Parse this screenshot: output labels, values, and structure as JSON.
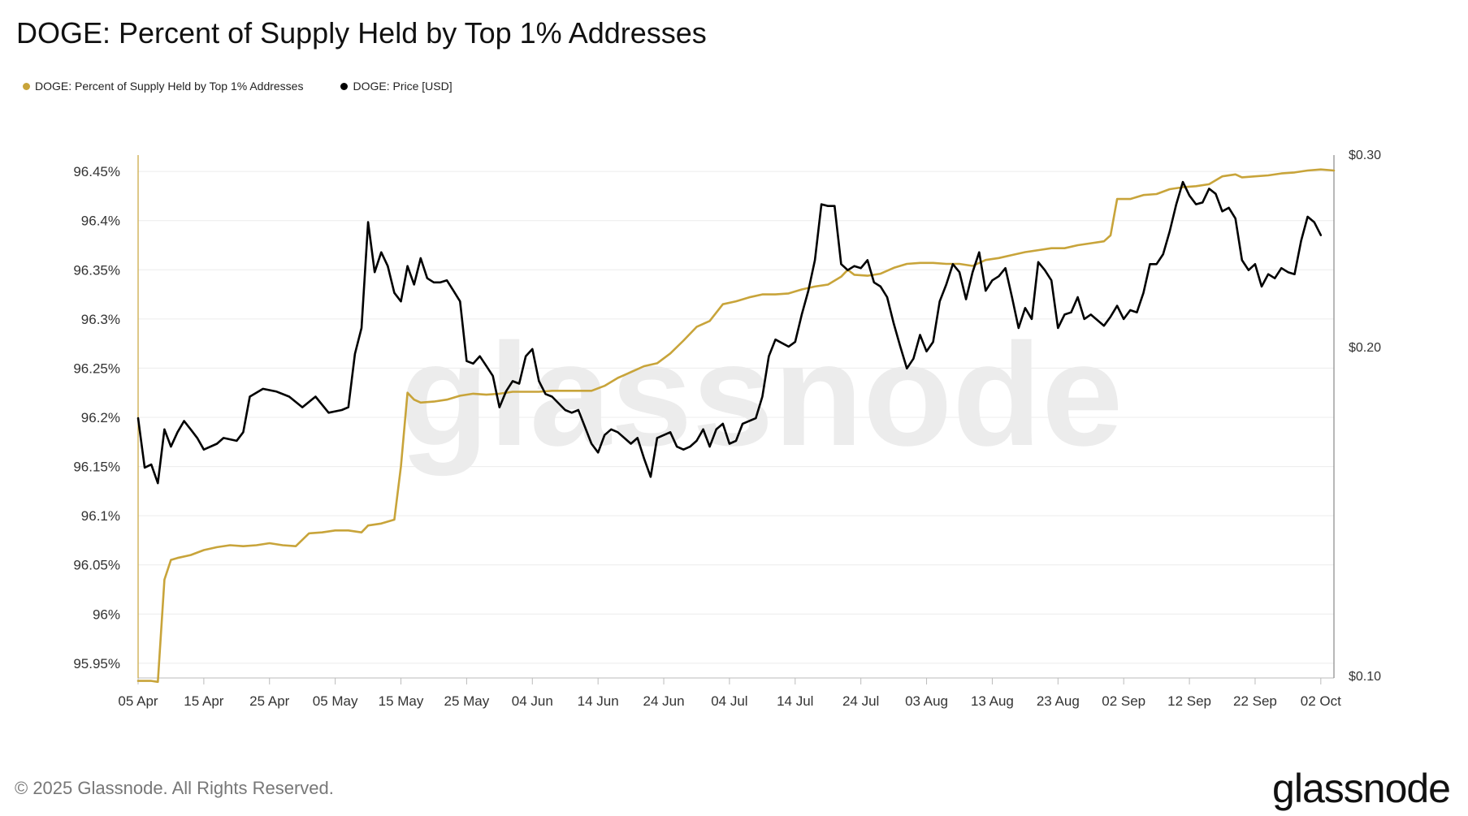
{
  "title": "DOGE: Percent of Supply Held by Top 1% Addresses",
  "legend": [
    {
      "label": "DOGE: Percent of Supply Held by Top 1% Addresses",
      "color": "#c8a43a"
    },
    {
      "label": "DOGE: Price [USD]",
      "color": "#000000"
    }
  ],
  "watermark": "glassnode",
  "footer": "© 2025 Glassnode. All Rights Reserved.",
  "brand": "glassnode",
  "chart_data": {
    "type": "line",
    "title": "DOGE: Percent of Supply Held by Top 1% Addresses",
    "x_ticks": [
      "05 Apr",
      "15 Apr",
      "25 Apr",
      "05 May",
      "15 May",
      "25 May",
      "04 Jun",
      "14 Jun",
      "24 Jun",
      "04 Jul",
      "14 Jul",
      "24 Jul",
      "03 Aug",
      "13 Aug",
      "23 Aug",
      "02 Sep",
      "12 Sep",
      "22 Sep",
      "02 Oct"
    ],
    "x_start": "2025-04-05",
    "x_end": "2025-10-04",
    "y_left_ticks": [
      "96.45%",
      "96.4%",
      "96.35%",
      "96.3%",
      "96.25%",
      "96.2%",
      "96.15%",
      "96.1%",
      "96.05%",
      "96%",
      "95.95%"
    ],
    "y_left_range": [
      95.935,
      96.465
    ],
    "y_right_ticks": [
      "$0.30",
      "$0.20",
      "$0.10"
    ],
    "y_right_range": [
      0.1,
      0.3
    ],
    "y_right_scale": "log",
    "grid": "horizontal",
    "legend_position": "top-left",
    "series": [
      {
        "name": "DOGE: Percent of Supply Held by Top 1% Addresses",
        "color": "#c8a43a",
        "axis": "left",
        "points": [
          [
            "2025-04-05",
            95.932
          ],
          [
            "2025-04-07",
            95.932
          ],
          [
            "2025-04-08",
            95.931
          ],
          [
            "2025-04-09",
            96.035
          ],
          [
            "2025-04-10",
            96.055
          ],
          [
            "2025-04-11",
            96.057
          ],
          [
            "2025-04-13",
            96.06
          ],
          [
            "2025-04-15",
            96.065
          ],
          [
            "2025-04-17",
            96.068
          ],
          [
            "2025-04-19",
            96.07
          ],
          [
            "2025-04-21",
            96.069
          ],
          [
            "2025-04-23",
            96.07
          ],
          [
            "2025-04-25",
            96.072
          ],
          [
            "2025-04-27",
            96.07
          ],
          [
            "2025-04-29",
            96.069
          ],
          [
            "2025-05-01",
            96.082
          ],
          [
            "2025-05-03",
            96.083
          ],
          [
            "2025-05-05",
            96.085
          ],
          [
            "2025-05-07",
            96.085
          ],
          [
            "2025-05-09",
            96.083
          ],
          [
            "2025-05-10",
            96.09
          ],
          [
            "2025-05-12",
            96.092
          ],
          [
            "2025-05-14",
            96.096
          ],
          [
            "2025-05-15",
            96.15
          ],
          [
            "2025-05-16",
            96.225
          ],
          [
            "2025-05-17",
            96.218
          ],
          [
            "2025-05-18",
            96.215
          ],
          [
            "2025-05-20",
            96.216
          ],
          [
            "2025-05-22",
            96.218
          ],
          [
            "2025-05-24",
            96.222
          ],
          [
            "2025-05-26",
            96.224
          ],
          [
            "2025-05-28",
            96.223
          ],
          [
            "2025-05-30",
            96.224
          ],
          [
            "2025-06-01",
            96.226
          ],
          [
            "2025-06-03",
            96.226
          ],
          [
            "2025-06-05",
            96.226
          ],
          [
            "2025-06-07",
            96.227
          ],
          [
            "2025-06-09",
            96.227
          ],
          [
            "2025-06-11",
            96.227
          ],
          [
            "2025-06-13",
            96.227
          ],
          [
            "2025-06-15",
            96.232
          ],
          [
            "2025-06-17",
            96.24
          ],
          [
            "2025-06-19",
            96.246
          ],
          [
            "2025-06-21",
            96.252
          ],
          [
            "2025-06-23",
            96.255
          ],
          [
            "2025-06-25",
            96.265
          ],
          [
            "2025-06-27",
            96.278
          ],
          [
            "2025-06-29",
            96.292
          ],
          [
            "2025-07-01",
            96.298
          ],
          [
            "2025-07-03",
            96.315
          ],
          [
            "2025-07-05",
            96.318
          ],
          [
            "2025-07-07",
            96.322
          ],
          [
            "2025-07-09",
            96.325
          ],
          [
            "2025-07-11",
            96.325
          ],
          [
            "2025-07-13",
            96.326
          ],
          [
            "2025-07-15",
            96.33
          ],
          [
            "2025-07-17",
            96.333
          ],
          [
            "2025-07-19",
            96.335
          ],
          [
            "2025-07-21",
            96.343
          ],
          [
            "2025-07-22",
            96.35
          ],
          [
            "2025-07-23",
            96.345
          ],
          [
            "2025-07-25",
            96.344
          ],
          [
            "2025-07-27",
            96.346
          ],
          [
            "2025-07-29",
            96.352
          ],
          [
            "2025-07-31",
            96.356
          ],
          [
            "2025-08-02",
            96.357
          ],
          [
            "2025-08-04",
            96.357
          ],
          [
            "2025-08-06",
            96.356
          ],
          [
            "2025-08-08",
            96.356
          ],
          [
            "2025-08-10",
            96.354
          ],
          [
            "2025-08-12",
            96.36
          ],
          [
            "2025-08-14",
            96.362
          ],
          [
            "2025-08-16",
            96.365
          ],
          [
            "2025-08-18",
            96.368
          ],
          [
            "2025-08-20",
            96.37
          ],
          [
            "2025-08-22",
            96.372
          ],
          [
            "2025-08-24",
            96.372
          ],
          [
            "2025-08-26",
            96.375
          ],
          [
            "2025-08-28",
            96.377
          ],
          [
            "2025-08-30",
            96.379
          ],
          [
            "2025-08-31",
            96.385
          ],
          [
            "2025-09-01",
            96.422
          ],
          [
            "2025-09-03",
            96.422
          ],
          [
            "2025-09-05",
            96.426
          ],
          [
            "2025-09-07",
            96.427
          ],
          [
            "2025-09-09",
            96.432
          ],
          [
            "2025-09-11",
            96.434
          ],
          [
            "2025-09-13",
            96.435
          ],
          [
            "2025-09-15",
            96.437
          ],
          [
            "2025-09-17",
            96.445
          ],
          [
            "2025-09-19",
            96.447
          ],
          [
            "2025-09-20",
            96.444
          ],
          [
            "2025-09-22",
            96.445
          ],
          [
            "2025-09-24",
            96.446
          ],
          [
            "2025-09-26",
            96.448
          ],
          [
            "2025-09-28",
            96.449
          ],
          [
            "2025-09-30",
            96.451
          ],
          [
            "2025-10-02",
            96.452
          ],
          [
            "2025-10-04",
            96.451
          ]
        ]
      },
      {
        "name": "DOGE: Price [USD]",
        "color": "#000000",
        "axis": "right",
        "points": [
          [
            "2025-04-05",
            0.172
          ],
          [
            "2025-04-06",
            0.155
          ],
          [
            "2025-04-07",
            0.156
          ],
          [
            "2025-04-08",
            0.15
          ],
          [
            "2025-04-09",
            0.168
          ],
          [
            "2025-04-10",
            0.162
          ],
          [
            "2025-04-11",
            0.167
          ],
          [
            "2025-04-12",
            0.171
          ],
          [
            "2025-04-13",
            0.168
          ],
          [
            "2025-04-14",
            0.165
          ],
          [
            "2025-04-15",
            0.161
          ],
          [
            "2025-04-17",
            0.163
          ],
          [
            "2025-04-18",
            0.165
          ],
          [
            "2025-04-20",
            0.164
          ],
          [
            "2025-04-21",
            0.167
          ],
          [
            "2025-04-22",
            0.18
          ],
          [
            "2025-04-24",
            0.183
          ],
          [
            "2025-04-26",
            0.182
          ],
          [
            "2025-04-28",
            0.18
          ],
          [
            "2025-04-30",
            0.176
          ],
          [
            "2025-05-02",
            0.18
          ],
          [
            "2025-05-04",
            0.174
          ],
          [
            "2025-05-06",
            0.175
          ],
          [
            "2025-05-07",
            0.176
          ],
          [
            "2025-05-08",
            0.197
          ],
          [
            "2025-05-09",
            0.208
          ],
          [
            "2025-05-10",
            0.26
          ],
          [
            "2025-05-11",
            0.234
          ],
          [
            "2025-05-12",
            0.244
          ],
          [
            "2025-05-13",
            0.237
          ],
          [
            "2025-05-14",
            0.224
          ],
          [
            "2025-05-15",
            0.22
          ],
          [
            "2025-05-16",
            0.237
          ],
          [
            "2025-05-17",
            0.228
          ],
          [
            "2025-05-18",
            0.241
          ],
          [
            "2025-05-19",
            0.231
          ],
          [
            "2025-05-20",
            0.229
          ],
          [
            "2025-05-21",
            0.229
          ],
          [
            "2025-05-22",
            0.23
          ],
          [
            "2025-05-23",
            0.225
          ],
          [
            "2025-05-24",
            0.22
          ],
          [
            "2025-05-25",
            0.194
          ],
          [
            "2025-05-26",
            0.193
          ],
          [
            "2025-05-27",
            0.196
          ],
          [
            "2025-05-28",
            0.192
          ],
          [
            "2025-05-29",
            0.188
          ],
          [
            "2025-05-30",
            0.176
          ],
          [
            "2025-05-31",
            0.182
          ],
          [
            "2025-06-01",
            0.186
          ],
          [
            "2025-06-02",
            0.185
          ],
          [
            "2025-06-03",
            0.196
          ],
          [
            "2025-06-04",
            0.199
          ],
          [
            "2025-06-05",
            0.186
          ],
          [
            "2025-06-06",
            0.181
          ],
          [
            "2025-06-07",
            0.18
          ],
          [
            "2025-06-09",
            0.175
          ],
          [
            "2025-06-10",
            0.174
          ],
          [
            "2025-06-11",
            0.175
          ],
          [
            "2025-06-13",
            0.163
          ],
          [
            "2025-06-14",
            0.16
          ],
          [
            "2025-06-15",
            0.166
          ],
          [
            "2025-06-16",
            0.168
          ],
          [
            "2025-06-17",
            0.167
          ],
          [
            "2025-06-18",
            0.165
          ],
          [
            "2025-06-19",
            0.163
          ],
          [
            "2025-06-20",
            0.165
          ],
          [
            "2025-06-21",
            0.158
          ],
          [
            "2025-06-22",
            0.152
          ],
          [
            "2025-06-23",
            0.165
          ],
          [
            "2025-06-25",
            0.167
          ],
          [
            "2025-06-26",
            0.162
          ],
          [
            "2025-06-27",
            0.161
          ],
          [
            "2025-06-28",
            0.162
          ],
          [
            "2025-06-29",
            0.164
          ],
          [
            "2025-06-30",
            0.168
          ],
          [
            "2025-07-01",
            0.162
          ],
          [
            "2025-07-02",
            0.168
          ],
          [
            "2025-07-03",
            0.17
          ],
          [
            "2025-07-04",
            0.163
          ],
          [
            "2025-07-05",
            0.164
          ],
          [
            "2025-07-06",
            0.17
          ],
          [
            "2025-07-08",
            0.172
          ],
          [
            "2025-07-09",
            0.18
          ],
          [
            "2025-07-10",
            0.196
          ],
          [
            "2025-07-11",
            0.203
          ],
          [
            "2025-07-13",
            0.2
          ],
          [
            "2025-07-14",
            0.202
          ],
          [
            "2025-07-15",
            0.214
          ],
          [
            "2025-07-16",
            0.225
          ],
          [
            "2025-07-17",
            0.24
          ],
          [
            "2025-07-18",
            0.27
          ],
          [
            "2025-07-19",
            0.269
          ],
          [
            "2025-07-20",
            0.269
          ],
          [
            "2025-07-21",
            0.238
          ],
          [
            "2025-07-22",
            0.235
          ],
          [
            "2025-07-23",
            0.237
          ],
          [
            "2025-07-24",
            0.236
          ],
          [
            "2025-07-25",
            0.24
          ],
          [
            "2025-07-26",
            0.229
          ],
          [
            "2025-07-27",
            0.227
          ],
          [
            "2025-07-28",
            0.222
          ],
          [
            "2025-07-29",
            0.21
          ],
          [
            "2025-07-30",
            0.2
          ],
          [
            "2025-07-31",
            0.191
          ],
          [
            "2025-08-01",
            0.195
          ],
          [
            "2025-08-02",
            0.205
          ],
          [
            "2025-08-03",
            0.198
          ],
          [
            "2025-08-04",
            0.202
          ],
          [
            "2025-08-05",
            0.22
          ],
          [
            "2025-08-06",
            0.228
          ],
          [
            "2025-08-07",
            0.238
          ],
          [
            "2025-08-08",
            0.234
          ],
          [
            "2025-08-09",
            0.221
          ],
          [
            "2025-08-10",
            0.234
          ],
          [
            "2025-08-11",
            0.244
          ],
          [
            "2025-08-12",
            0.225
          ],
          [
            "2025-08-13",
            0.23
          ],
          [
            "2025-08-14",
            0.232
          ],
          [
            "2025-08-15",
            0.236
          ],
          [
            "2025-08-16",
            0.222
          ],
          [
            "2025-08-17",
            0.208
          ],
          [
            "2025-08-18",
            0.217
          ],
          [
            "2025-08-19",
            0.212
          ],
          [
            "2025-08-20",
            0.239
          ],
          [
            "2025-08-21",
            0.235
          ],
          [
            "2025-08-22",
            0.23
          ],
          [
            "2025-08-23",
            0.208
          ],
          [
            "2025-08-24",
            0.214
          ],
          [
            "2025-08-25",
            0.215
          ],
          [
            "2025-08-26",
            0.222
          ],
          [
            "2025-08-27",
            0.212
          ],
          [
            "2025-08-28",
            0.214
          ],
          [
            "2025-08-30",
            0.209
          ],
          [
            "2025-08-31",
            0.213
          ],
          [
            "2025-09-01",
            0.218
          ],
          [
            "2025-09-02",
            0.212
          ],
          [
            "2025-09-03",
            0.216
          ],
          [
            "2025-09-04",
            0.215
          ],
          [
            "2025-09-05",
            0.224
          ],
          [
            "2025-09-06",
            0.238
          ],
          [
            "2025-09-07",
            0.238
          ],
          [
            "2025-09-08",
            0.243
          ],
          [
            "2025-09-09",
            0.255
          ],
          [
            "2025-09-10",
            0.27
          ],
          [
            "2025-09-11",
            0.283
          ],
          [
            "2025-09-12",
            0.275
          ],
          [
            "2025-09-13",
            0.27
          ],
          [
            "2025-09-14",
            0.271
          ],
          [
            "2025-09-15",
            0.279
          ],
          [
            "2025-09-16",
            0.276
          ],
          [
            "2025-09-17",
            0.266
          ],
          [
            "2025-09-18",
            0.268
          ],
          [
            "2025-09-19",
            0.262
          ],
          [
            "2025-09-20",
            0.24
          ],
          [
            "2025-09-21",
            0.235
          ],
          [
            "2025-09-22",
            0.238
          ],
          [
            "2025-09-23",
            0.227
          ],
          [
            "2025-09-24",
            0.233
          ],
          [
            "2025-09-25",
            0.231
          ],
          [
            "2025-09-26",
            0.236
          ],
          [
            "2025-09-27",
            0.234
          ],
          [
            "2025-09-28",
            0.233
          ],
          [
            "2025-09-29",
            0.25
          ],
          [
            "2025-09-30",
            0.263
          ],
          [
            "2025-10-01",
            0.26
          ],
          [
            "2025-10-02",
            0.253
          ]
        ]
      }
    ]
  }
}
